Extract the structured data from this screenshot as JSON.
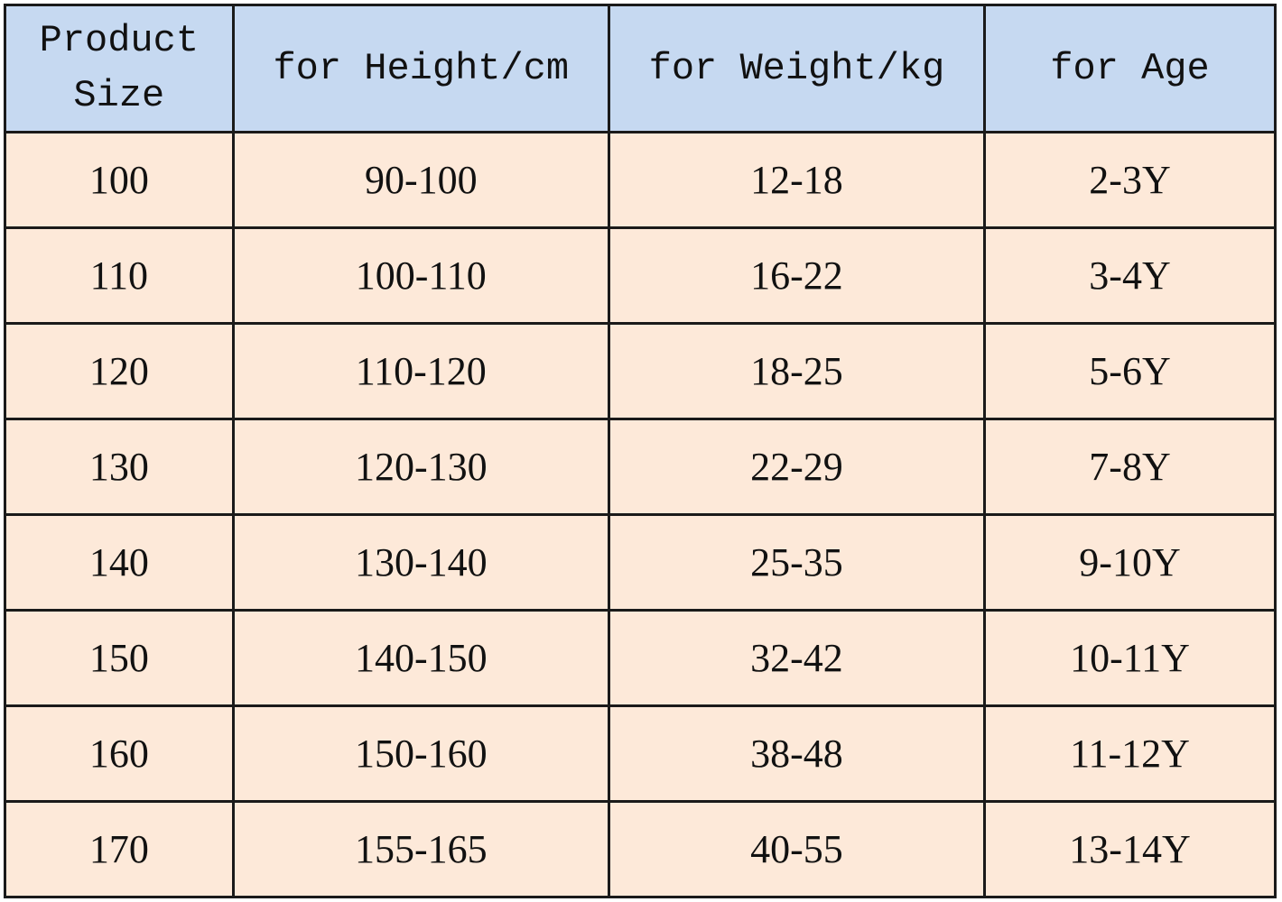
{
  "table": {
    "header": [
      "Product Size",
      "for Height/cm",
      "for Weight/kg",
      "for Age"
    ],
    "rows": [
      [
        "100",
        "90-100",
        "12-18",
        "2-3Y"
      ],
      [
        "110",
        "100-110",
        "16-22",
        "3-4Y"
      ],
      [
        "120",
        "110-120",
        "18-25",
        "5-6Y"
      ],
      [
        "130",
        "120-130",
        "22-29",
        "7-8Y"
      ],
      [
        "140",
        "130-140",
        "25-35",
        "9-10Y"
      ],
      [
        "150",
        "140-150",
        "32-42",
        "10-11Y"
      ],
      [
        "160",
        "150-160",
        "38-48",
        "11-12Y"
      ],
      [
        "170",
        "155-165",
        "40-55",
        "13-14Y"
      ]
    ]
  }
}
